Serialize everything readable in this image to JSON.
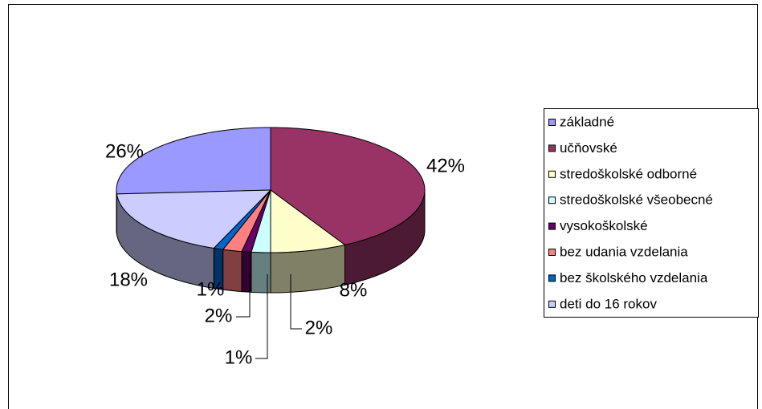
{
  "chart_data": {
    "type": "pie3d",
    "categories": [
      "základné",
      "učňovské",
      "stredoškolské odborné",
      "stredoškolské všeobecné",
      "vysokoškolské",
      "bez udania vzdelania",
      "bez školského vzdelania",
      "deti do 16 rokov"
    ],
    "values": [
      26,
      42,
      8,
      2,
      1,
      2,
      1,
      18
    ],
    "value_labels": [
      "26%",
      "42%",
      "8%",
      "2%",
      "1%",
      "2%",
      "1%",
      "18%"
    ],
    "colors": [
      "#9999ff",
      "#993366",
      "#ffffcc",
      "#ccffff",
      "#660066",
      "#ff8080",
      "#0066cc",
      "#ccccff"
    ],
    "legend": "right"
  }
}
